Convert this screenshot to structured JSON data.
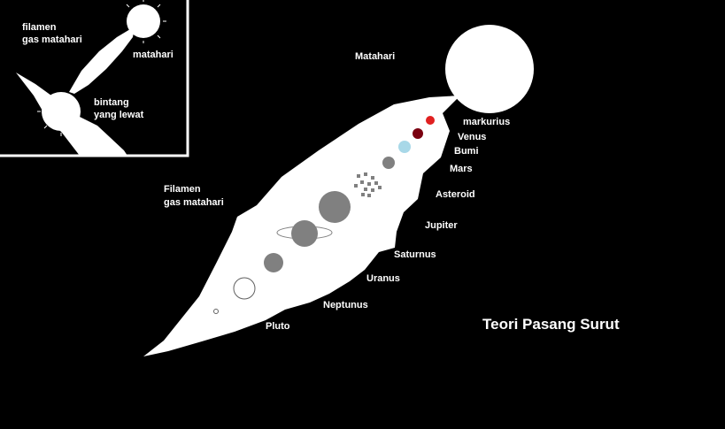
{
  "main": {
    "title": "Teori Pasang Surut",
    "labels": {
      "matahari": "Matahari",
      "filamen_1": "Filamen",
      "filamen_2": "gas matahari",
      "markurius": "markurius",
      "venus": "Venus",
      "bumi": "Bumi",
      "mars": "Mars",
      "asteroid": "Asteroid",
      "jupiter": "Jupiter",
      "saturnus": "Saturnus",
      "uranus": "Uranus",
      "neptunus": "Neptunus",
      "pluto": "Pluto"
    }
  },
  "inset": {
    "filamen_1": "filamen",
    "filamen_2": "gas matahari",
    "matahari": "matahari",
    "bintang_1": "bintang",
    "bintang_2": "yang lewat"
  },
  "colors": {
    "background": "#000000",
    "filament": "#ffffff",
    "mercury": "#e02020",
    "venus": "#7a0010",
    "earth": "#a8d8e8",
    "planet_grey": "#808080"
  }
}
